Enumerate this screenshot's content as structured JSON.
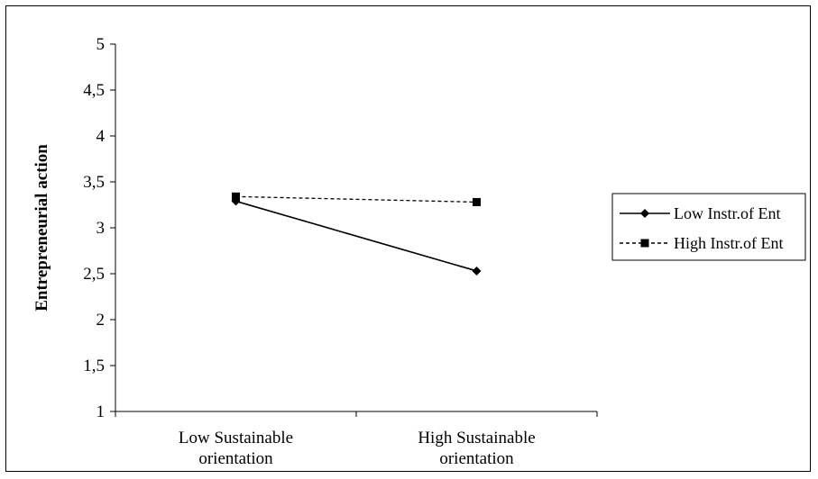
{
  "chart_data": {
    "type": "line",
    "title": "",
    "xlabel": "",
    "ylabel": "Entrepreneurial action",
    "ylim": [
      1,
      5
    ],
    "y_ticks": [
      "1",
      "1,5",
      "2",
      "2,5",
      "3",
      "3,5",
      "4",
      "4,5",
      "5"
    ],
    "categories": [
      [
        "Low Sustainable",
        "orientation"
      ],
      [
        "High Sustainable",
        "orientation"
      ]
    ],
    "series": [
      {
        "name": "Low Instr.of Ent",
        "values": [
          3.29,
          2.53
        ],
        "marker": "diamond",
        "dash": "solid",
        "color": "#000000"
      },
      {
        "name": "High Instr.of Ent",
        "values": [
          3.34,
          3.28
        ],
        "marker": "square",
        "dash": "dashed",
        "color": "#000000"
      }
    ],
    "grid": false,
    "legend_position": "right"
  }
}
